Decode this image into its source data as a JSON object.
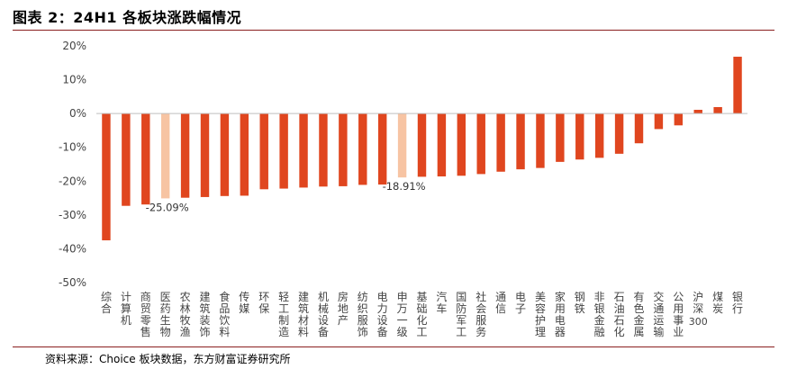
{
  "title": "图表 2：24H1 各板块涨跌幅情况",
  "source": "资料来源：Choice 板块数据，东方财富证券研究所",
  "colors": {
    "bar": "#e0461f",
    "highlight": "#f7c4a3",
    "axis_text": "#444444",
    "zero_line": "#bfbfbf"
  },
  "chart_data": {
    "type": "bar",
    "categories": [
      "综合",
      "计算机",
      "商贸零售",
      "医药生物",
      "农林牧渔",
      "建筑装饰",
      "食品饮料",
      "传媒",
      "环保",
      "轻工制造",
      "建筑材料",
      "机械设备",
      "房地产",
      "纺织服饰",
      "电力设备",
      "申万一级",
      "基础化工",
      "汽车",
      "国防军工",
      "社会服务",
      "通信",
      "电子",
      "美容护理",
      "家用电器",
      "钢铁",
      "非银金融",
      "石油石化",
      "有色金属",
      "交通运输",
      "公用事业",
      "沪深300",
      "煤炭",
      "银行"
    ],
    "values": [
      -37.5,
      -27.3,
      -26.9,
      -25.09,
      -24.9,
      -24.7,
      -24.4,
      -24.3,
      -22.4,
      -22.2,
      -21.9,
      -21.6,
      -21.5,
      -21.1,
      -21.0,
      -18.91,
      -18.7,
      -18.6,
      -18.4,
      -17.9,
      -17.2,
      -16.5,
      -16.1,
      -14.3,
      -13.6,
      -13.1,
      -11.9,
      -8.8,
      -4.6,
      -3.5,
      1.1,
      1.9,
      16.8
    ],
    "highlight": [
      "医药生物",
      "申万一级"
    ],
    "data_labels": [
      {
        "category": "医药生物",
        "text": "-25.09%"
      },
      {
        "category": "申万一级",
        "text": "-18.91%"
      }
    ],
    "yticks": [
      "20%",
      "10%",
      "0%",
      "-10%",
      "-20%",
      "-30%",
      "-40%",
      "-50%"
    ],
    "ylim": [
      -50,
      20
    ],
    "grid": false,
    "legend": false
  }
}
